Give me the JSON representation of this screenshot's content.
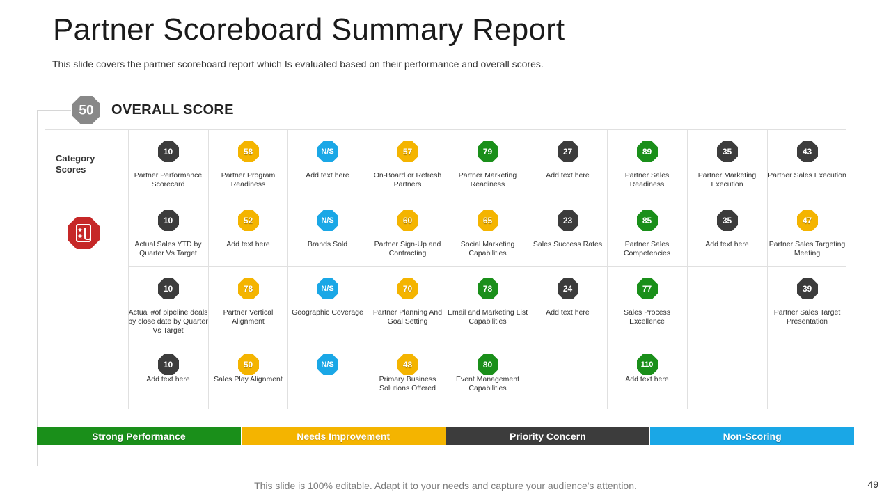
{
  "title": "Partner Scoreboard Summary Report",
  "subtitle": "This slide covers the partner scoreboard report which Is evaluated based on their performance and overall scores.",
  "overall": {
    "score": "50",
    "label": "OVERALL SCORE",
    "status": "non-scoring"
  },
  "category_label": "Category Scores",
  "icon_name": "scorecard-icon",
  "colors": {
    "strong": "#1a8f1a",
    "needs": "#f4b400",
    "priority": "#3c3c3c",
    "nonscoring": "#1aa7e6",
    "icon_red": "#c62828"
  },
  "grid": [
    [
      {
        "value": "10",
        "status": "priority",
        "text": "Partner Performance Scorecard"
      },
      {
        "value": "58",
        "status": "needs",
        "text": "Partner Program Readiness"
      },
      {
        "value": "N/S",
        "status": "nonscoring",
        "text": "Add text here"
      },
      {
        "value": "57",
        "status": "needs",
        "text": "On-Board or Refresh Partners"
      },
      {
        "value": "79",
        "status": "strong",
        "text": "Partner Marketing Readiness"
      },
      {
        "value": "27",
        "status": "priority",
        "text": "Add text here"
      },
      {
        "value": "89",
        "status": "strong",
        "text": "Partner Sales Readiness"
      },
      {
        "value": "35",
        "status": "priority",
        "text": "Partner Marketing Execution"
      },
      {
        "value": "43",
        "status": "priority",
        "text": "Partner Sales Execution"
      }
    ],
    [
      {
        "value": "10",
        "status": "priority",
        "text": "Actual Sales YTD by Quarter Vs Target"
      },
      {
        "value": "52",
        "status": "needs",
        "text": "Add text here"
      },
      {
        "value": "N/S",
        "status": "nonscoring",
        "text": "Brands Sold"
      },
      {
        "value": "60",
        "status": "needs",
        "text": "Partner Sign-Up and Contracting"
      },
      {
        "value": "65",
        "status": "needs",
        "text": "Social Marketing Capabilities"
      },
      {
        "value": "23",
        "status": "priority",
        "text": "Sales Success Rates"
      },
      {
        "value": "85",
        "status": "strong",
        "text": "Partner Sales Competencies"
      },
      {
        "value": "35",
        "status": "priority",
        "text": "Add text here"
      },
      {
        "value": "47",
        "status": "needs",
        "text": "Partner Sales Targeting Meeting"
      }
    ],
    [
      {
        "value": "10",
        "status": "priority",
        "text": "Actual #of pipeline deals by close date by Quarter Vs Target"
      },
      {
        "value": "78",
        "status": "needs",
        "text": "Partner Vertical Alignment"
      },
      {
        "value": "N/S",
        "status": "nonscoring",
        "text": "Geographic Coverage"
      },
      {
        "value": "70",
        "status": "needs",
        "text": "Partner Planning And Goal Setting"
      },
      {
        "value": "78",
        "status": "strong",
        "text": "Email  and Marketing List Capabilities"
      },
      {
        "value": "24",
        "status": "priority",
        "text": "Add text here"
      },
      {
        "value": "77",
        "status": "strong",
        "text": "Sales Process Excellence"
      },
      null,
      {
        "value": "39",
        "status": "priority",
        "text": "Partner Sales Target Presentation"
      }
    ],
    [
      {
        "value": "10",
        "status": "priority",
        "text": "Add text here"
      },
      {
        "value": "50",
        "status": "needs",
        "text": "Sales Play Alignment"
      },
      {
        "value": "N/S",
        "status": "nonscoring",
        "text": ""
      },
      {
        "value": "48",
        "status": "needs",
        "text": "Primary Business Solutions Offered"
      },
      {
        "value": "80",
        "status": "strong",
        "text": "Event Management Capabilities"
      },
      null,
      {
        "value": "110",
        "status": "strong",
        "text": "Add text here"
      },
      null,
      null
    ]
  ],
  "legend": [
    {
      "label": "Strong Performance",
      "status": "strong"
    },
    {
      "label": "Needs Improvement",
      "status": "needs"
    },
    {
      "label": "Priority Concern",
      "status": "priority"
    },
    {
      "label": "Non-Scoring",
      "status": "nonscoring"
    }
  ],
  "footer": "This slide is 100% editable. Adapt it to your needs and capture your audience's attention.",
  "page_number": "49"
}
